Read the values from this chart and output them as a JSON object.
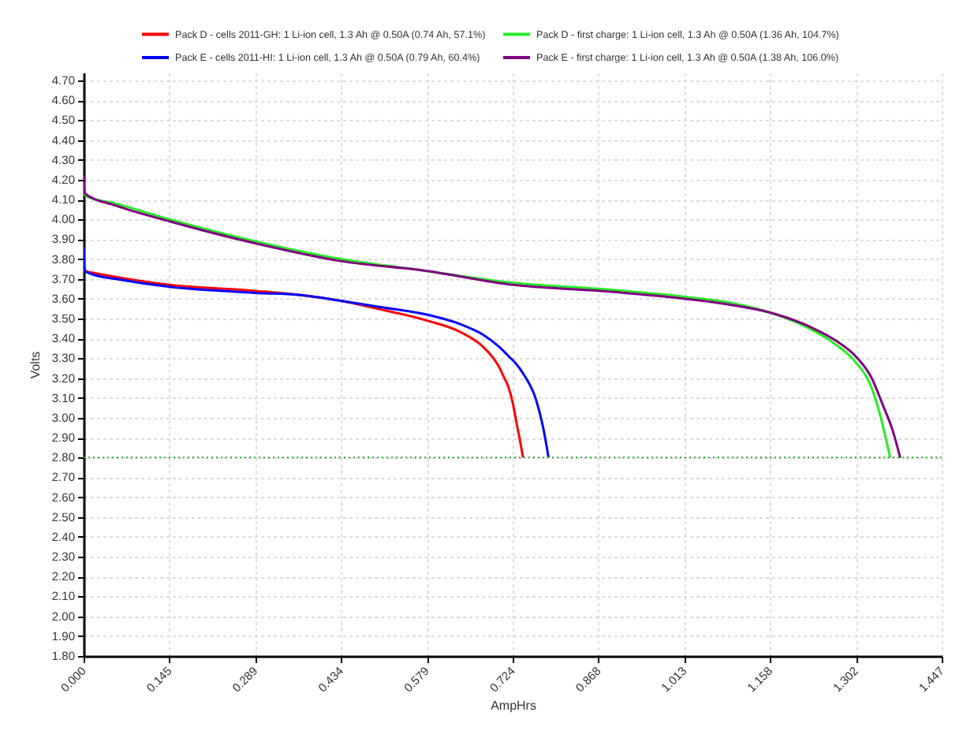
{
  "chart_data": {
    "type": "line",
    "xlabel": "AmpHrs",
    "ylabel": "Volts",
    "series": [
      {
        "name": "Pack D - cells 2011-GH: 1 Li-ion cell, 1.3 Ah @ 0.50A (0.74 Ah, 57.1%)",
        "color": "#ff0000",
        "x": [
          0,
          0.003,
          0.018,
          0.054,
          0.145,
          0.289,
          0.363,
          0.434,
          0.496,
          0.579,
          0.637,
          0.673,
          0.691,
          0.7,
          0.708,
          0.717,
          0.724,
          0.731,
          0.735,
          0.741
        ],
        "values": [
          3.76,
          3.74,
          3.73,
          3.71,
          3.67,
          3.64,
          3.62,
          3.59,
          3.55,
          3.49,
          3.43,
          3.36,
          3.3,
          3.26,
          3.21,
          3.15,
          3.07,
          2.96,
          2.9,
          2.8
        ]
      },
      {
        "name": "Pack E - cells 2011-HI: 1 Li-ion cell, 1.3 Ah @ 0.50A (0.79 Ah, 60.4%)",
        "color": "#0000ff",
        "x": [
          0,
          0.002,
          0.018,
          0.054,
          0.145,
          0.289,
          0.363,
          0.434,
          0.496,
          0.579,
          0.637,
          0.673,
          0.7,
          0.717,
          0.73,
          0.744,
          0.762,
          0.775,
          0.784
        ],
        "values": [
          3.86,
          3.74,
          3.72,
          3.7,
          3.66,
          3.63,
          3.62,
          3.59,
          3.56,
          3.52,
          3.47,
          3.42,
          3.36,
          3.31,
          3.27,
          3.21,
          3.1,
          2.95,
          2.8
        ]
      },
      {
        "name": "Pack D - first charge: 1 Li-ion cell, 1.3 Ah @ 0.50A (1.36 Ah, 104.7%)",
        "color": "#22ee22",
        "x": [
          0,
          0.003,
          0.054,
          0.145,
          0.289,
          0.434,
          0.579,
          0.724,
          0.868,
          1.013,
          1.09,
          1.158,
          1.224,
          1.268,
          1.302,
          1.329,
          1.347,
          1.36
        ],
        "values": [
          4.14,
          4.12,
          4.08,
          4.0,
          3.89,
          3.8,
          3.74,
          3.68,
          3.65,
          3.61,
          3.58,
          3.53,
          3.45,
          3.37,
          3.28,
          3.15,
          2.97,
          2.8
        ]
      },
      {
        "name": "Pack E - first charge: 1 Li-ion cell, 1.3 Ah @ 0.50A (1.38 Ah, 106.0%)",
        "color": "#800080",
        "x": [
          0,
          0.002,
          0.054,
          0.145,
          0.289,
          0.434,
          0.579,
          0.724,
          0.868,
          1.013,
          1.09,
          1.158,
          1.224,
          1.268,
          1.302,
          1.329,
          1.347,
          1.365,
          1.377
        ],
        "values": [
          4.22,
          4.13,
          4.07,
          3.99,
          3.88,
          3.79,
          3.74,
          3.67,
          3.64,
          3.6,
          3.57,
          3.53,
          3.46,
          3.39,
          3.31,
          3.2,
          3.07,
          2.93,
          2.8
        ]
      }
    ],
    "ref_lines": [
      {
        "axis": "y",
        "value": 2.8,
        "color": "#22aa22",
        "line_style": "dotted"
      }
    ],
    "xlim": [
      0,
      1.447
    ],
    "ylim": [
      1.8,
      4.74
    ],
    "xticks": [
      {
        "value": 0,
        "label": "0.000"
      },
      {
        "value": 0.1447,
        "label": "0.145"
      },
      {
        "value": 0.2894,
        "label": "0.289"
      },
      {
        "value": 0.4341,
        "label": "0.434"
      },
      {
        "value": 0.5788,
        "label": "0.579"
      },
      {
        "value": 0.7235,
        "label": "0.724"
      },
      {
        "value": 0.8682,
        "label": "0.868"
      },
      {
        "value": 1.0129,
        "label": "1.013"
      },
      {
        "value": 1.1576,
        "label": "1.158"
      },
      {
        "value": 1.3023,
        "label": "1.302"
      },
      {
        "value": 1.447,
        "label": "1.447"
      }
    ],
    "yticks": [
      {
        "value": 1.8,
        "label": "1.80"
      },
      {
        "value": 1.9,
        "label": "1.90"
      },
      {
        "value": 2.0,
        "label": "2.00"
      },
      {
        "value": 2.1,
        "label": "2.10"
      },
      {
        "value": 2.2,
        "label": "2.20"
      },
      {
        "value": 2.3,
        "label": "2.30"
      },
      {
        "value": 2.4,
        "label": "2.40"
      },
      {
        "value": 2.5,
        "label": "2.50"
      },
      {
        "value": 2.6,
        "label": "2.60"
      },
      {
        "value": 2.7,
        "label": "2.70"
      },
      {
        "value": 2.8,
        "label": "2.80"
      },
      {
        "value": 2.9,
        "label": "2.90"
      },
      {
        "value": 3.0,
        "label": "3.00"
      },
      {
        "value": 3.1,
        "label": "3.10"
      },
      {
        "value": 3.2,
        "label": "3.20"
      },
      {
        "value": 3.3,
        "label": "3.30"
      },
      {
        "value": 3.4,
        "label": "3.40"
      },
      {
        "value": 3.5,
        "label": "3.50"
      },
      {
        "value": 3.6,
        "label": "3.60"
      },
      {
        "value": 3.7,
        "label": "3.70"
      },
      {
        "value": 3.8,
        "label": "3.80"
      },
      {
        "value": 3.9,
        "label": "3.90"
      },
      {
        "value": 4.0,
        "label": "4.00"
      },
      {
        "value": 4.1,
        "label": "4.10"
      },
      {
        "value": 4.2,
        "label": "4.20"
      },
      {
        "value": 4.3,
        "label": "4.30"
      },
      {
        "value": 4.4,
        "label": "4.40"
      },
      {
        "value": 4.5,
        "label": "4.50"
      },
      {
        "value": 4.6,
        "label": "4.60"
      },
      {
        "value": 4.7,
        "label": "4.70"
      }
    ],
    "grid": true,
    "legend": "top",
    "marker": "none",
    "line_style": "solid"
  }
}
